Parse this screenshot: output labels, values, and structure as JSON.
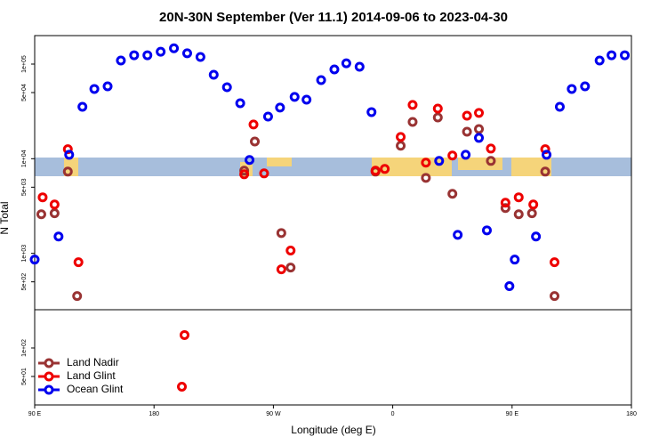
{
  "chart_data": {
    "type": "scatter",
    "title": "20N-30N September (Ver 11.1)   2014-09-06 to 2023-04-30",
    "x_label": "Longitude (deg E)",
    "y_label": "N Total",
    "log_y": true,
    "xlim": [
      90,
      540
    ],
    "ylim": [
      25,
      200000
    ],
    "xticks": [
      {
        "value": 90,
        "label": "90 E"
      },
      180,
      {
        "value": 270,
        "label": "90 W"
      },
      {
        "value": 360,
        "label": "0"
      },
      {
        "value": 450,
        "label": "90 E"
      },
      {
        "value": 540,
        "label": "180"
      }
    ],
    "yticks": [
      {
        "value": 50,
        "label": "5e+01"
      },
      {
        "value": 100,
        "label": "1e+02"
      },
      {
        "value": 500,
        "label": "5e+02"
      },
      {
        "value": 1000,
        "label": "1e+03"
      },
      {
        "value": 5000,
        "label": "5e+03"
      },
      {
        "value": 10000,
        "label": "1e+04"
      },
      {
        "value": 50000,
        "label": "5e+04"
      },
      {
        "value": 100000,
        "label": "1e+05"
      }
    ],
    "legend": "bottom-left",
    "series": [
      {
        "name": "Land Nadir",
        "color": "#993333",
        "x": [
          95,
          105,
          115,
          122,
          248,
          256,
          276,
          283,
          347,
          366,
          375,
          385,
          394,
          405,
          416,
          425,
          434,
          445,
          455,
          465,
          475,
          482
        ],
        "values": [
          2590,
          2650,
          7310,
          354,
          7470,
          15200,
          1640,
          708,
          7310,
          13700,
          24500,
          6280,
          27300,
          4260,
          19300,
          20600,
          9480,
          3010,
          2590,
          2650,
          7310,
          354
        ]
      },
      {
        "name": "Land Glint",
        "color": "#ee0000",
        "x": [
          96,
          105,
          115,
          123,
          201,
          203,
          248,
          255,
          263,
          276,
          283,
          347,
          354,
          366,
          375,
          385,
          394,
          405,
          416,
          425,
          434,
          445,
          455,
          466,
          475,
          482
        ],
        "values": [
          3910,
          3280,
          12600,
          806,
          39,
          137,
          6850,
          23000,
          7000,
          678,
          1070,
          7470,
          7800,
          17000,
          37000,
          9080,
          33900,
          10800,
          28500,
          30500,
          12800,
          3430,
          3910,
          3280,
          12600,
          806
        ]
      },
      {
        "name": "Ocean Glint",
        "color": "#0000ee",
        "x": [
          90,
          108,
          116,
          126,
          135,
          145,
          155,
          165,
          175,
          185,
          195,
          205,
          215,
          225,
          235,
          245,
          252,
          266,
          275,
          286,
          295,
          306,
          316,
          325,
          335,
          344,
          395,
          409,
          415,
          425,
          431,
          448,
          452,
          468,
          476,
          486,
          495,
          505,
          516,
          525,
          535
        ],
        "values": [
          859,
          1507,
          11000,
          35400,
          54600,
          58200,
          109000,
          124000,
          124000,
          135000,
          147000,
          130000,
          119000,
          77100,
          57000,
          38600,
          9690,
          27900,
          34700,
          45000,
          42100,
          67800,
          87900,
          102000,
          93700,
          31100,
          9480,
          1570,
          11000,
          16600,
          1750,
          450,
          859,
          1507,
          11000,
          35400,
          54600,
          58200,
          109000,
          124000,
          124000
        ]
      }
    ]
  }
}
